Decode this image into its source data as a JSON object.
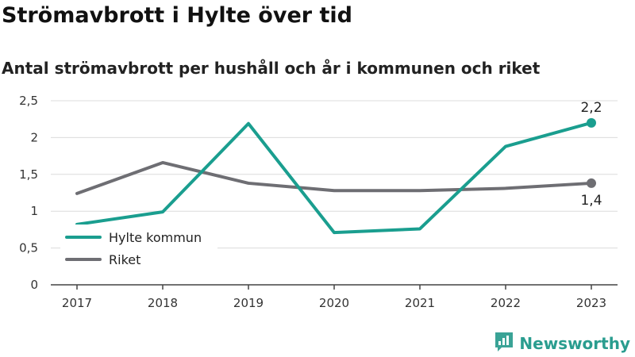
{
  "header": {
    "title": "Strömavbrott i Hylte över tid",
    "subtitle": "Antal strömavbrott per hushåll och år i kommunen och riket"
  },
  "brand": {
    "name": "Newsworthy",
    "icon": "chat-bar-chart-icon",
    "color": "#3aa396"
  },
  "chart_data": {
    "type": "line",
    "categories": [
      "2017",
      "2018",
      "2019",
      "2020",
      "2021",
      "2022",
      "2023"
    ],
    "series": [
      {
        "name": "Hylte kommun",
        "color": "#1a9e8f",
        "values": [
          0.82,
          0.99,
          2.19,
          0.71,
          0.76,
          1.88,
          2.2
        ]
      },
      {
        "name": "Riket",
        "color": "#6e6e73",
        "values": [
          1.24,
          1.66,
          1.38,
          1.28,
          1.28,
          1.31,
          1.38
        ]
      }
    ],
    "yticks": [
      "0",
      "0,5",
      "1",
      "1,5",
      "2",
      "2,5"
    ],
    "ylim": [
      0,
      2.5
    ],
    "end_labels": [
      "2,2",
      "1,4"
    ],
    "grid": true,
    "legend_position": "bottom-left"
  }
}
